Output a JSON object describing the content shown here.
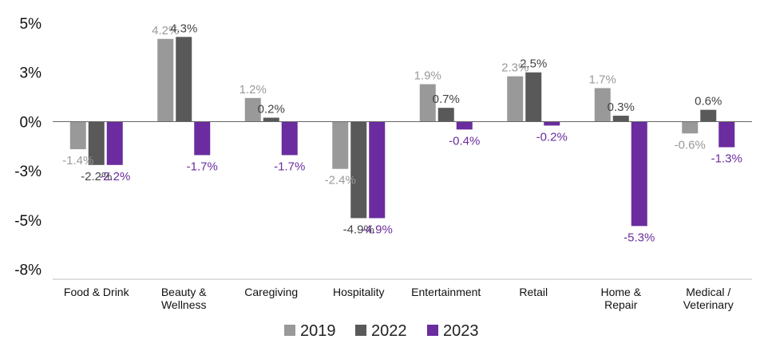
{
  "chart_data": {
    "type": "bar",
    "title": "",
    "xlabel": "",
    "ylabel": "",
    "ylim": [
      -8,
      5
    ],
    "y_ticks": [
      {
        "value": 5,
        "label": "5%"
      },
      {
        "value": 2.5,
        "label": "3%"
      },
      {
        "value": 0,
        "label": "0%"
      },
      {
        "value": -2.5,
        "label": "-3%"
      },
      {
        "value": -5,
        "label": "-5%"
      },
      {
        "value": -7.5,
        "label": "-8%"
      }
    ],
    "grid": false,
    "legend_position": "bottom",
    "categories": [
      [
        "Food & Drink"
      ],
      [
        "Beauty &",
        "Wellness"
      ],
      [
        "Caregiving"
      ],
      [
        "Hospitality"
      ],
      [
        "Entertainment"
      ],
      [
        "Retail"
      ],
      [
        "Home &",
        "Repair"
      ],
      [
        "Medical /",
        "Veterinary"
      ]
    ],
    "series": [
      {
        "name": "2019",
        "color": "#999999",
        "values": [
          -1.4,
          4.2,
          1.2,
          -2.4,
          1.9,
          2.3,
          1.7,
          -0.6
        ]
      },
      {
        "name": "2022",
        "color": "#595959",
        "values": [
          -2.2,
          4.3,
          0.2,
          -4.9,
          0.7,
          2.5,
          0.3,
          0.6
        ]
      },
      {
        "name": "2023",
        "color": "#6a2c9e",
        "values": [
          -2.2,
          -1.7,
          -1.7,
          -4.9,
          -0.4,
          -0.2,
          -5.3,
          -1.3
        ]
      }
    ]
  }
}
